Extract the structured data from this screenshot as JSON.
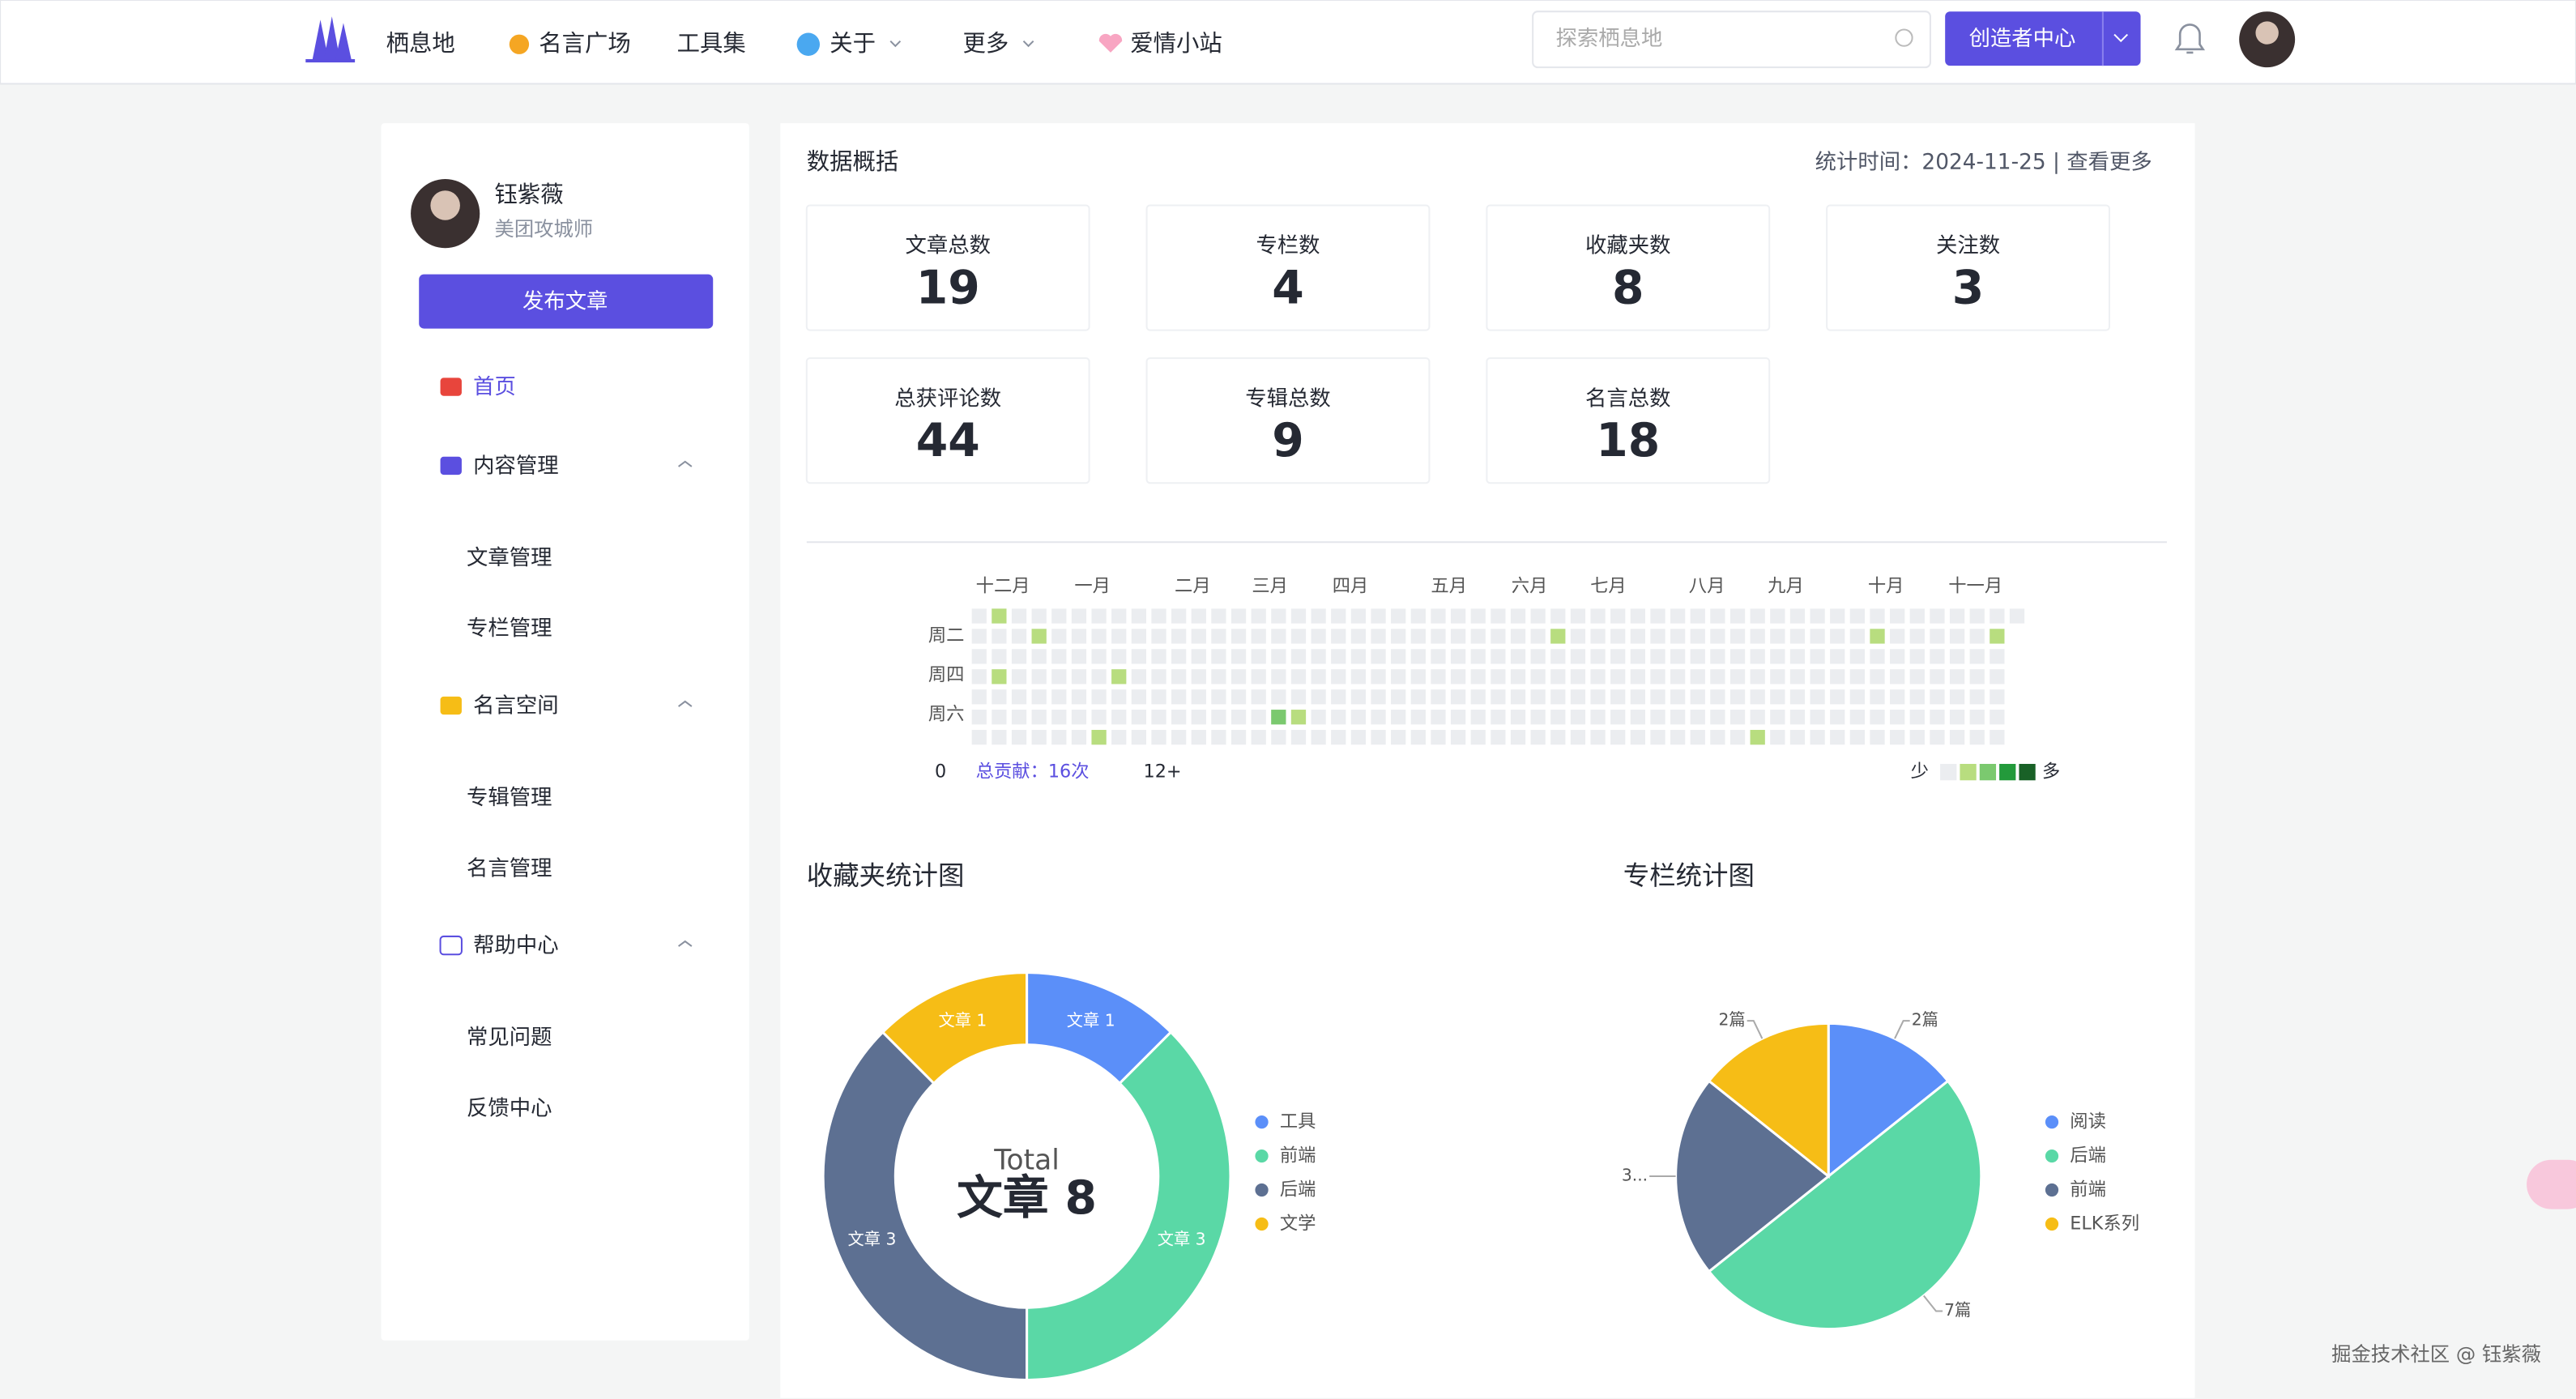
{
  "nav": {
    "items": [
      "栖息地",
      "名言广场",
      "工具集",
      "关于",
      "更多",
      "爱情小站"
    ],
    "search_placeholder": "探索栖息地",
    "creator_button": "创造者中心"
  },
  "sidebar": {
    "user_name": "钰紫薇",
    "user_title": "美团攻城师",
    "publish_button": "发布文章",
    "menu": [
      {
        "label": "首页"
      },
      {
        "label": "内容管理",
        "children": [
          "文章管理",
          "专栏管理"
        ]
      },
      {
        "label": "名言空间",
        "children": [
          "专辑管理",
          "名言管理"
        ]
      },
      {
        "label": "帮助中心",
        "children": [
          "常见问题",
          "反馈中心"
        ]
      }
    ]
  },
  "overview": {
    "title": "数据概括",
    "stats_time": "统计时间：2024-11-25 | 查看更多",
    "stats": [
      {
        "label": "文章总数",
        "value": 19
      },
      {
        "label": "专栏数",
        "value": 4
      },
      {
        "label": "收藏夹数",
        "value": 8
      },
      {
        "label": "关注数",
        "value": 3
      },
      {
        "label": "总获评论数",
        "value": 44
      },
      {
        "label": "专辑总数",
        "value": 9
      },
      {
        "label": "名言总数",
        "value": 18
      }
    ]
  },
  "heatmap": {
    "months": [
      "十二月",
      "一月",
      "二月",
      "三月",
      "四月",
      "五月",
      "六月",
      "七月",
      "八月",
      "九月",
      "十月",
      "十一月"
    ],
    "weekdays": [
      "周二",
      "周四",
      "周六"
    ],
    "min_label": "0",
    "total_label": "总贡献：16次",
    "max_label": "12+",
    "legend_less": "少",
    "legend_more": "多",
    "cells": [
      {
        "week": 1,
        "day": 0,
        "level": 1
      },
      {
        "week": 3,
        "day": 1,
        "level": 1
      },
      {
        "week": 1,
        "day": 3,
        "level": 1
      },
      {
        "week": 7,
        "day": 3,
        "level": 1
      },
      {
        "week": 6,
        "day": 6,
        "level": 1
      },
      {
        "week": 15,
        "day": 5,
        "level": 2
      },
      {
        "week": 16,
        "day": 5,
        "level": 1
      },
      {
        "week": 29,
        "day": 1,
        "level": 1
      },
      {
        "week": 39,
        "day": 6,
        "level": 1
      },
      {
        "week": 45,
        "day": 1,
        "level": 1
      },
      {
        "week": 51,
        "day": 1,
        "level": 1
      }
    ]
  },
  "chart_data": [
    {
      "type": "donut",
      "title": "收藏夹统计图",
      "categories": [
        "工具",
        "前端",
        "后端",
        "文学"
      ],
      "values": [
        1,
        3,
        3,
        1
      ],
      "value_labels": [
        "文章 1",
        "文章 3",
        "文章 3",
        "文章 1"
      ],
      "colors": [
        "#5b8ff9",
        "#5ad8a6",
        "#5d7092",
        "#f6bd16"
      ],
      "center_label": "Total",
      "center_value_label": "文章 8"
    },
    {
      "type": "pie",
      "title": "专栏统计图",
      "categories": [
        "阅读",
        "后端",
        "前端",
        "ELK系列"
      ],
      "values": [
        2,
        7,
        3,
        2
      ],
      "value_labels": [
        "2篇",
        "7篇",
        "3...",
        "2篇"
      ],
      "colors": [
        "#5b8ff9",
        "#5ad8a6",
        "#5d7092",
        "#f6bd16"
      ]
    }
  ],
  "watermark": "掘金技术社区 @ 钰紫薇"
}
